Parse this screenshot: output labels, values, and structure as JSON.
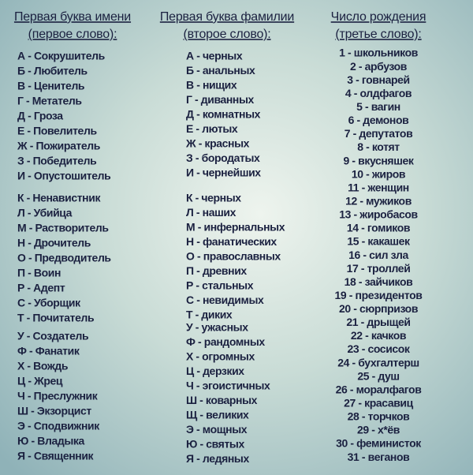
{
  "columns": [
    {
      "title": "Первая буква имени",
      "subtitle": "(первое слово):",
      "items": [
        "А - Сокрушитель",
        "Б - Любитель",
        "В - Ценитель",
        "Г - Метатель",
        "Д - Гроза",
        "Е - Повелитель",
        "Ж - Пожиратель",
        "З - Победитель",
        "И - Опустошитель",
        "К - Ненавистник",
        "Л - Убийца",
        "М - Растворитель",
        "Н - Дрочитель",
        "О - Предводитель",
        "П - Воин",
        "Р - Адепт",
        "С - Уборщик",
        "Т - Почитатель",
        "У - Создатель",
        "Ф - Фанатик",
        "Х - Вождь",
        "Ц - Жрец",
        "Ч - Преслужник",
        "Ш - Экзорцист",
        "Э - Сподвижник",
        "Ю - Владыка",
        "Я - Священник"
      ]
    },
    {
      "title": "Первая буква фамилии",
      "subtitle": "(второе слово):",
      "items": [
        "А - черных",
        "Б - анальных",
        "В - нищих",
        "Г - диванных",
        "Д - комнатных",
        "Е - лютых",
        "Ж - красных",
        "З - бородатых",
        "И - чернейших",
        "К - черных",
        "Л - наших",
        "М - инфернальных",
        "Н - фанатических",
        "О - православных",
        "П - древних",
        "Р - стальных",
        "С - невидимых",
        "Т - диких",
        "У - ужасных",
        "Ф - рандомных",
        "Х - огромных",
        "Ц - дерзких",
        "Ч - эгоистичных",
        "Ш - коварных",
        "Щ - великих",
        "Э - мощных",
        "Ю - святых",
        "Я - ледяных"
      ]
    },
    {
      "title": "Число рождения",
      "subtitle": "(третье слово):",
      "items": [
        "1 - школьников",
        "2 - арбузов",
        "3 - говнарей",
        "4 - олдфагов",
        "5 - вагин",
        "6 - демонов",
        "7 - депутатов",
        "8 - котят",
        "9 - вкусняшек",
        "10 - жиров",
        "11 - женщин",
        "12 - мужиков",
        "13 - жиробасов",
        "14 - гомиков",
        "15 - какашек",
        "16 - сил зла",
        "17 - троллей",
        "18 - зайчиков",
        "19 - президентов",
        "20 - сюрпризов",
        "21 - дрыщей",
        "22 - качков",
        "23 - сосисок",
        "24 - бухгалтерш",
        "25 - душ",
        "26 - моралфагов",
        "27 - красавиц",
        "28 - торчков",
        "29 - х*ёв",
        "30 - феминисток",
        "31 - веганов"
      ]
    }
  ]
}
